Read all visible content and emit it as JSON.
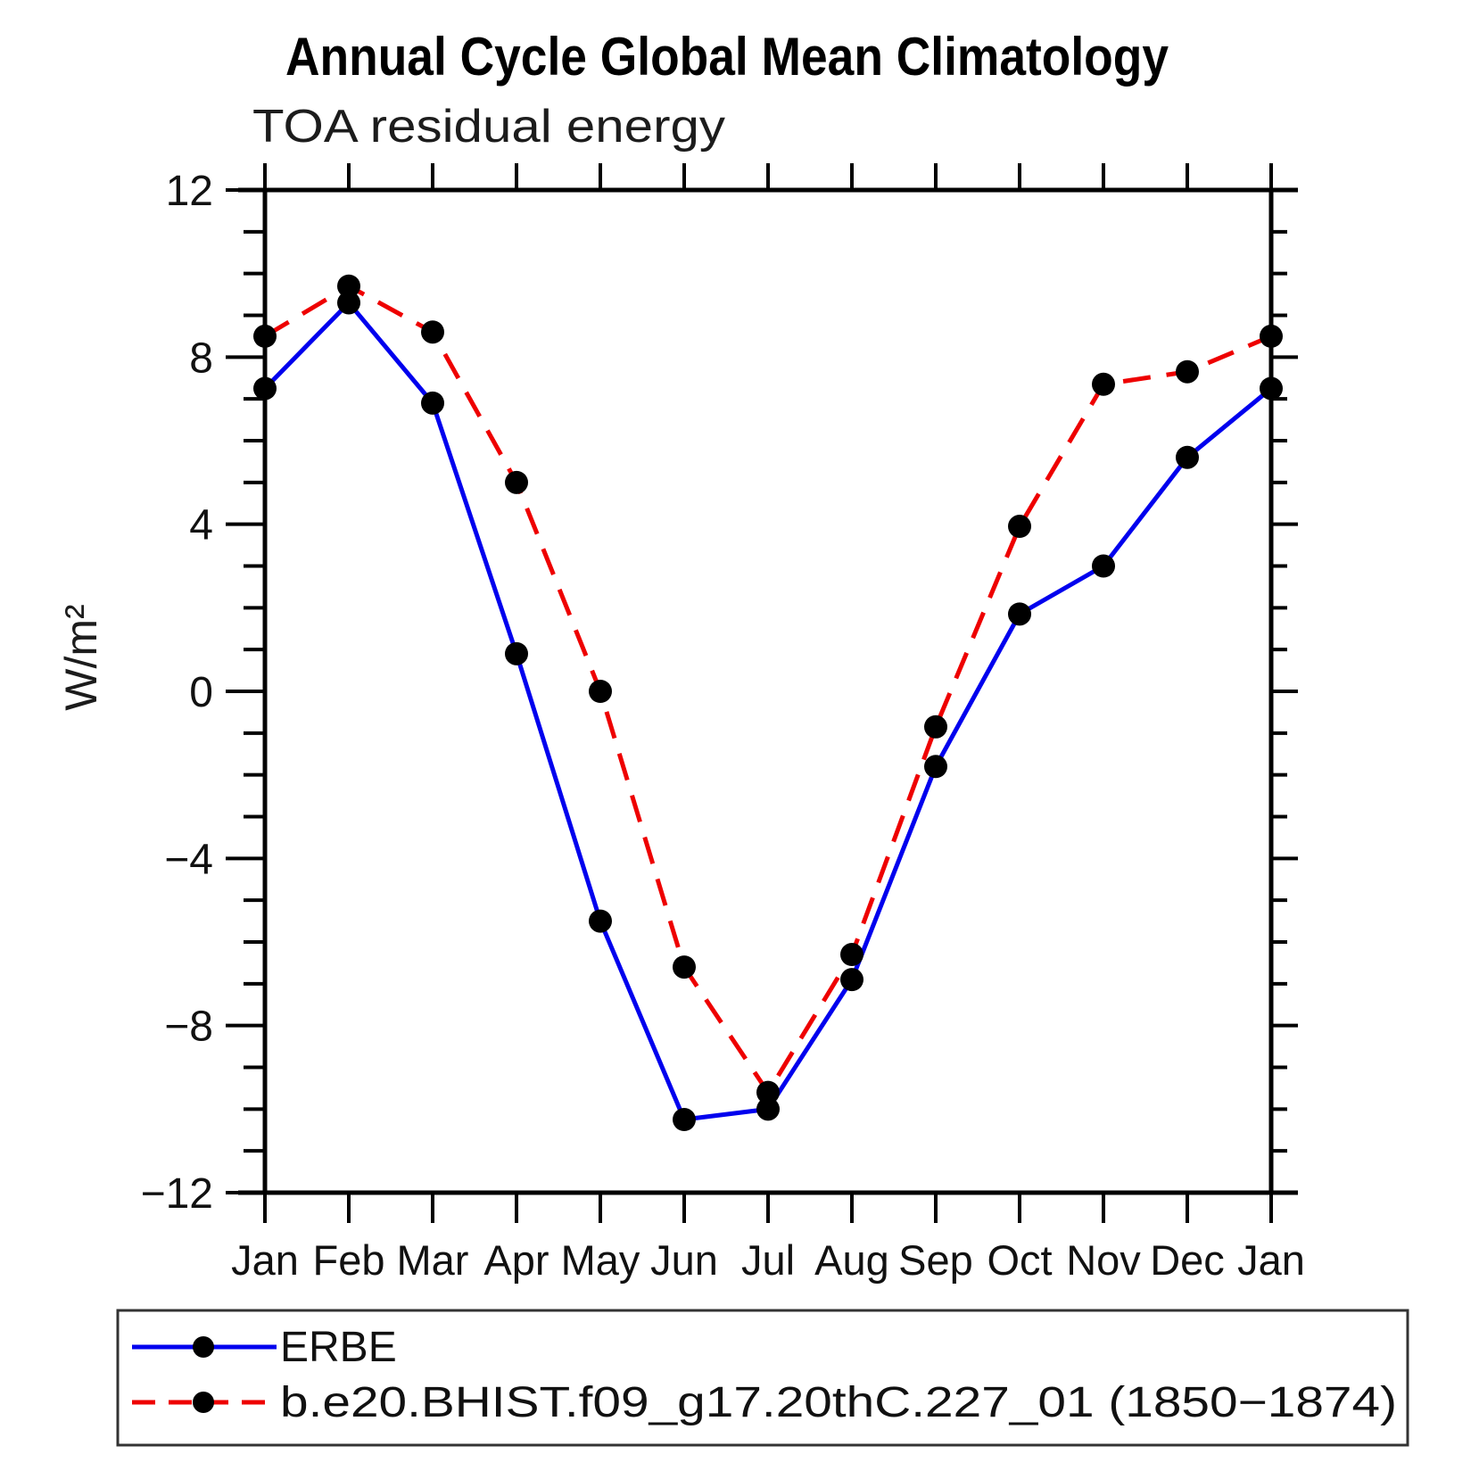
{
  "figure": {
    "title": "Annual Cycle Global Mean Climatology",
    "subtitle": "TOA residual energy"
  },
  "chart_data": {
    "type": "line",
    "title": "Annual Cycle Global Mean Climatology",
    "subtitle": "TOA residual energy",
    "xlabel": "",
    "ylabel": "W/m²",
    "categories": [
      "Jan",
      "Feb",
      "Mar",
      "Apr",
      "May",
      "Jun",
      "Jul",
      "Aug",
      "Sep",
      "Oct",
      "Nov",
      "Dec",
      "Jan"
    ],
    "series": [
      {
        "name": "ERBE",
        "color": "#0000ee",
        "line_style": "solid",
        "marker": "filled-circle",
        "marker_color": "#000000",
        "values": [
          7.25,
          9.3,
          6.9,
          0.9,
          -5.5,
          -10.25,
          -10.0,
          -6.9,
          -1.8,
          1.85,
          3.0,
          5.6,
          7.25
        ]
      },
      {
        "name": "b.e20.BHIST.f09_g17.20thC.227_01 (1850−1874)",
        "color": "#ee0000",
        "line_style": "dashed",
        "marker": "filled-circle",
        "marker_color": "#000000",
        "values": [
          8.5,
          9.7,
          8.6,
          5.0,
          0.0,
          -6.6,
          -9.6,
          -6.3,
          -0.85,
          3.95,
          7.35,
          7.65,
          8.5
        ]
      }
    ],
    "ylim": [
      -12,
      12
    ],
    "yticks_major": [
      {
        "value": 12,
        "label": "12"
      },
      {
        "value": 8,
        "label": "8"
      },
      {
        "value": 4,
        "label": "4"
      },
      {
        "value": 0,
        "label": "0"
      },
      {
        "value": -4,
        "label": "−4"
      },
      {
        "value": -8,
        "label": "−8"
      },
      {
        "value": -12,
        "label": "−12"
      }
    ],
    "ytick_minor_step": 1,
    "grid": false,
    "legend_position": "bottom-left-box"
  }
}
